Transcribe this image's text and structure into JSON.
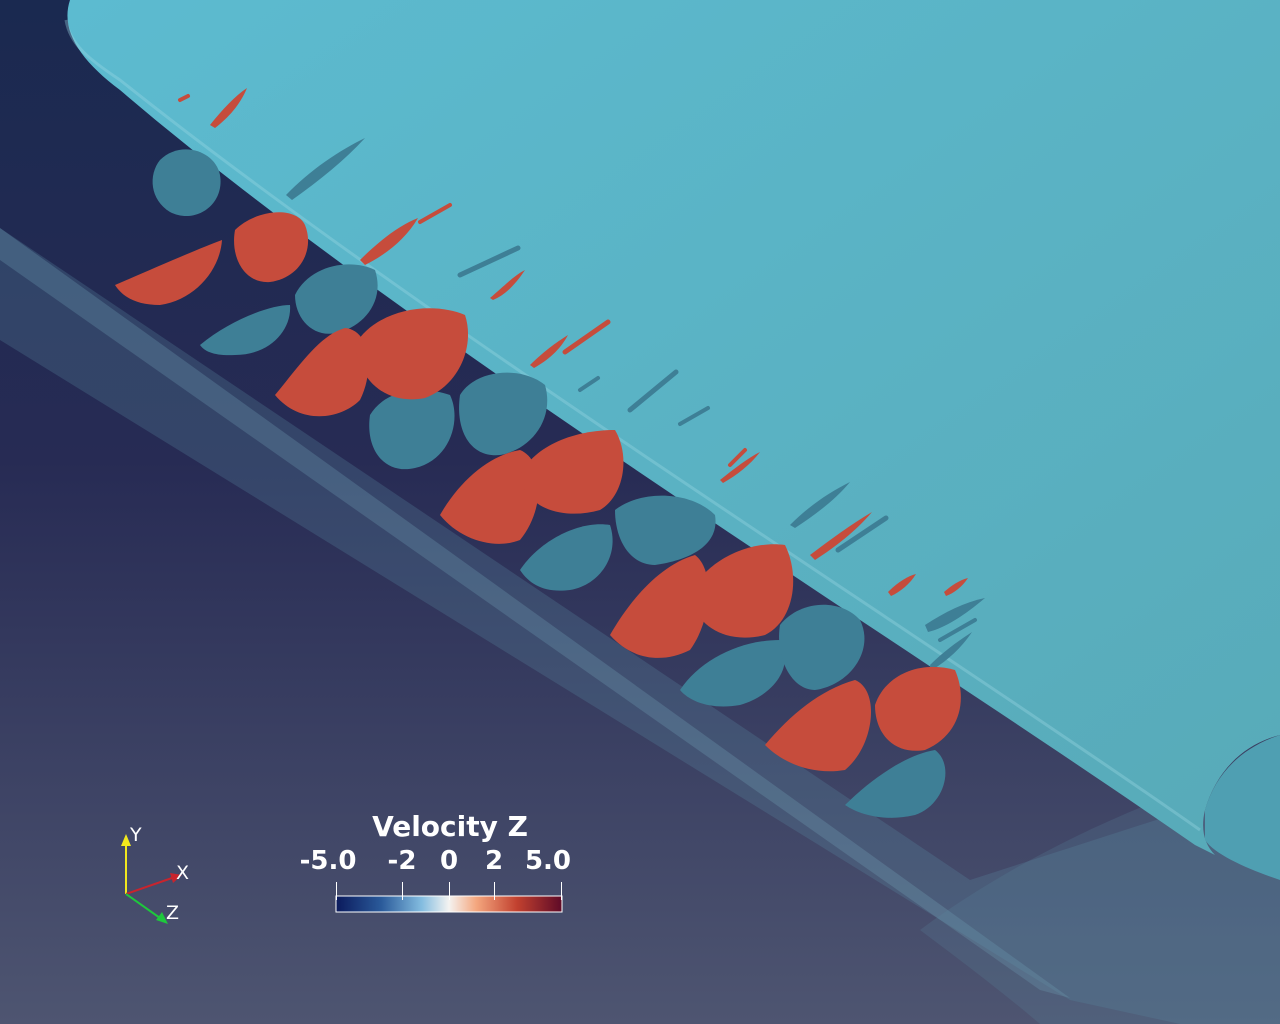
{
  "scene": {
    "background_top": "#1a2950",
    "background_bottom": "#4e5571",
    "wing_color": "#5ab5c8",
    "positive_color": "#c64c3c",
    "negative_color": "#3e7f96"
  },
  "colorbar": {
    "title": "Velocity Z",
    "ticks": [
      "-5.0",
      "-2",
      "0",
      "2",
      "5.0"
    ],
    "colormap": [
      "#0b1a5c",
      "#2a5a9a",
      "#84bde0",
      "#f4f3f1",
      "#f4a77f",
      "#c2412f",
      "#5e0a27"
    ]
  },
  "axes": {
    "x": "X",
    "y": "Y",
    "z": "Z",
    "x_color": "#c8242d",
    "y_color": "#f2e81e",
    "z_color": "#1ec83c"
  }
}
